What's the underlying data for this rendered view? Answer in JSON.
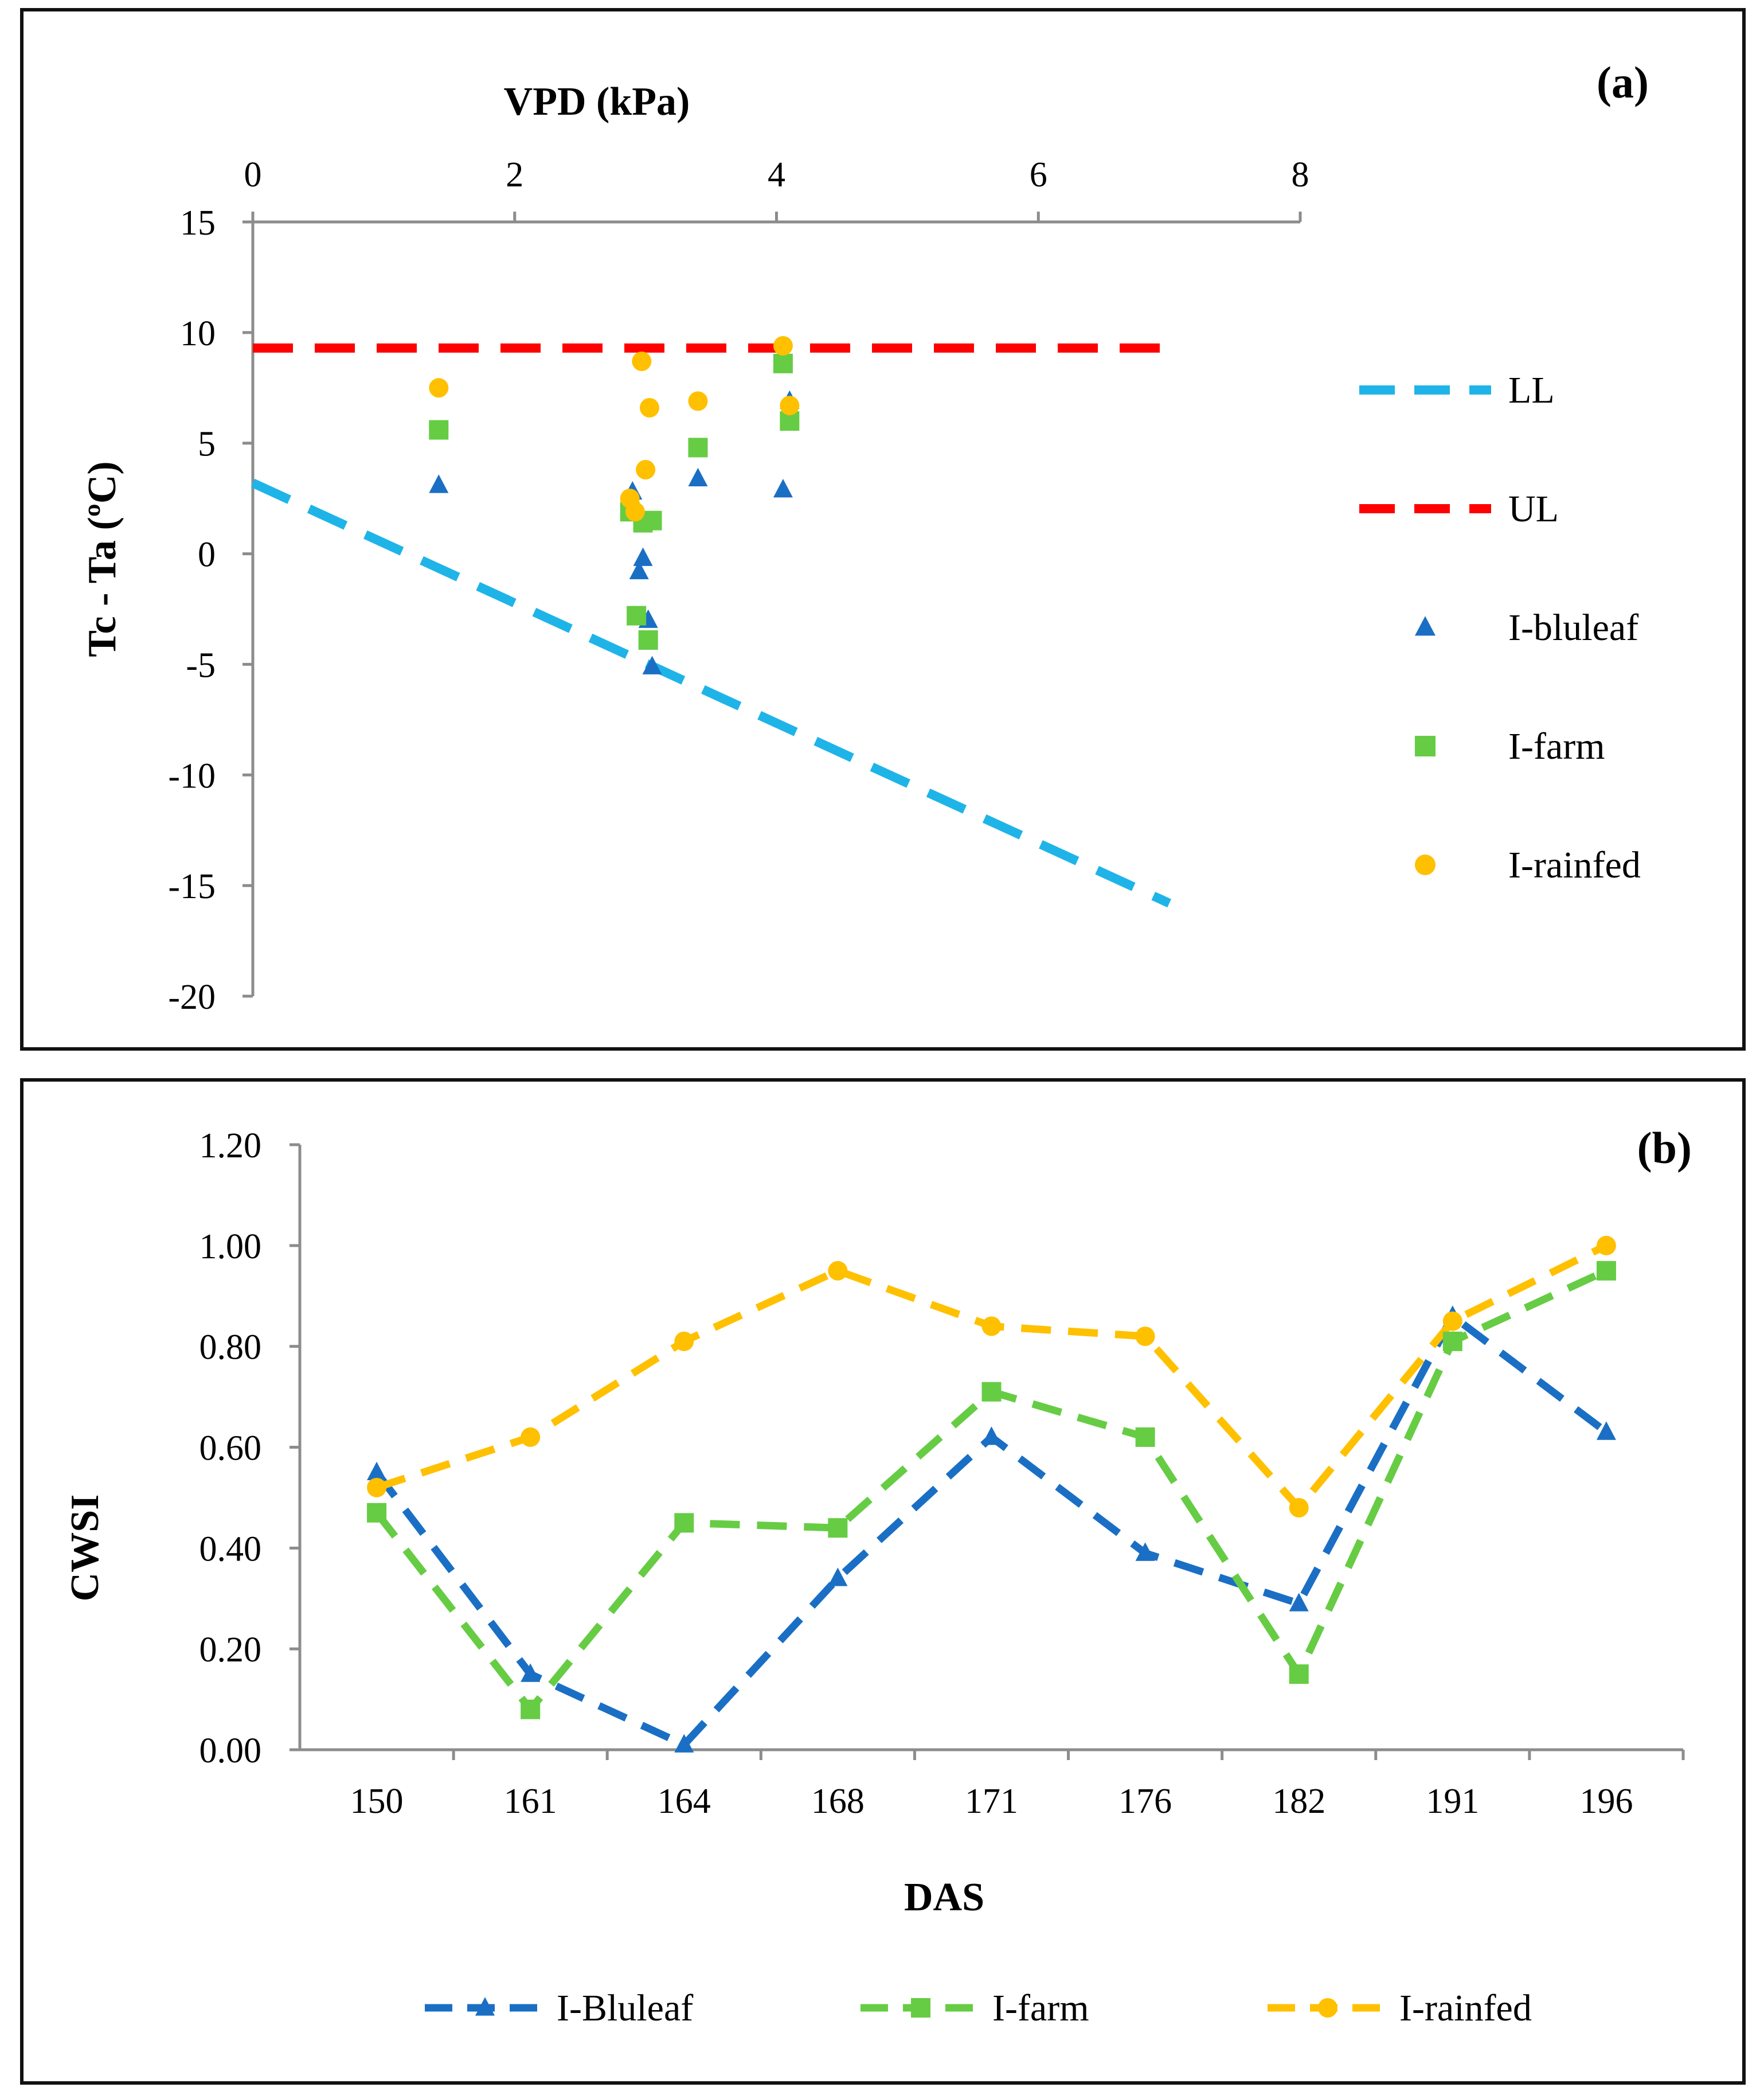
{
  "chart_data": [
    {
      "panel": "(a)",
      "type": "scatter",
      "xlabel": "VPD (kPa)",
      "ylabel": "Tc - Ta (ºC)",
      "xlim": [
        0,
        8
      ],
      "ylim": [
        -20,
        15
      ],
      "xticks": [
        "0",
        "2",
        "4",
        "6",
        "8"
      ],
      "yticks": [
        "15",
        "10",
        "5",
        "0",
        "-5",
        "-10",
        "-15",
        "-20"
      ],
      "x_axis_position": "top",
      "grid": false,
      "legend": "right",
      "series": [
        {
          "name": "LL",
          "kind": "dashed-line",
          "color": "#1fb4e8",
          "x": [
            0,
            7
          ],
          "y": [
            3.2,
            -15.8
          ]
        },
        {
          "name": "UL",
          "kind": "dashed-line",
          "color": "#ff0000",
          "x": [
            0,
            7
          ],
          "y": [
            9.3,
            9.3
          ]
        },
        {
          "name": "I-bluleaf",
          "kind": "marker",
          "marker": "triangle",
          "color": "#1a6fc4",
          "x": [
            1.42,
            2.9,
            2.95,
            2.98,
            3.02,
            3.05,
            3.4,
            4.05,
            4.1
          ],
          "y": [
            3.1,
            2.8,
            -0.8,
            -0.2,
            -3.0,
            -5.1,
            3.4,
            2.9,
            6.9
          ]
        },
        {
          "name": "I-farm",
          "kind": "marker",
          "marker": "square",
          "color": "#66cc44",
          "x": [
            1.42,
            2.88,
            2.93,
            2.98,
            3.02,
            3.05,
            3.4,
            4.05,
            4.1
          ],
          "y": [
            5.6,
            1.9,
            -2.8,
            1.4,
            -3.9,
            1.5,
            4.8,
            8.6,
            6.0
          ]
        },
        {
          "name": "I-rainfed",
          "kind": "marker",
          "marker": "circle",
          "color": "#ffc000",
          "x": [
            1.42,
            2.88,
            2.92,
            2.97,
            3.0,
            3.03,
            3.4,
            4.05,
            4.1
          ],
          "y": [
            7.5,
            2.5,
            1.9,
            8.7,
            3.8,
            6.6,
            6.9,
            9.4,
            6.7
          ]
        }
      ]
    },
    {
      "panel": "(b)",
      "type": "line",
      "xlabel": "DAS",
      "ylabel": "CWSI",
      "categories": [
        "150",
        "161",
        "164",
        "168",
        "171",
        "176",
        "182",
        "191",
        "196"
      ],
      "ylim": [
        0,
        1.2
      ],
      "yticks": [
        "0.00",
        "0.20",
        "0.40",
        "0.60",
        "0.80",
        "1.00",
        "1.20"
      ],
      "grid": false,
      "legend": "bottom",
      "series": [
        {
          "name": "I-Bluleaf",
          "marker": "triangle",
          "color": "#1a6fc4",
          "values": [
            0.55,
            0.15,
            0.01,
            0.34,
            0.62,
            0.39,
            0.29,
            0.86,
            0.63
          ]
        },
        {
          "name": "I-farm",
          "marker": "square",
          "color": "#66cc44",
          "values": [
            0.47,
            0.08,
            0.45,
            0.44,
            0.71,
            0.62,
            0.15,
            0.81,
            0.95
          ]
        },
        {
          "name": "I-rainfed",
          "marker": "circle",
          "color": "#ffc000",
          "values": [
            0.52,
            0.62,
            0.81,
            0.95,
            0.84,
            0.82,
            0.48,
            0.85,
            1.0
          ]
        }
      ]
    }
  ]
}
